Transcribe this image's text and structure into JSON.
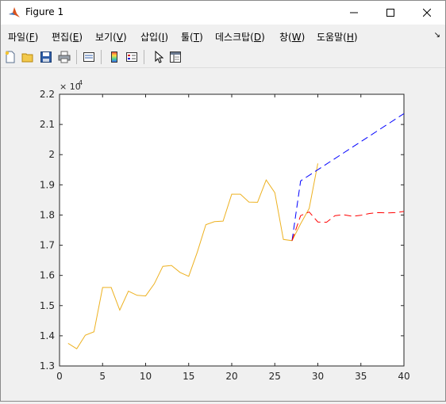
{
  "window": {
    "title": "Figure 1"
  },
  "window_controls": {
    "minimize": "—",
    "maximize": "☐",
    "close": "✕"
  },
  "menu": {
    "items": [
      {
        "text": "파일(",
        "acc": "F",
        "end": ")"
      },
      {
        "text": "편집(",
        "acc": "E",
        "end": ")"
      },
      {
        "text": "보기(",
        "acc": "V",
        "end": ")"
      },
      {
        "text": "삽입(",
        "acc": "I",
        "end": ")"
      },
      {
        "text": "툴(",
        "acc": "T",
        "end": ")"
      },
      {
        "text": "데스크탑(",
        "acc": "D",
        "end": ")"
      },
      {
        "text": "창(",
        "acc": "W",
        "end": ")"
      },
      {
        "text": "도움말(",
        "acc": "H",
        "end": ")"
      }
    ],
    "dock_arrow": "↘"
  },
  "toolbar": {
    "icons": [
      "new-figure-icon",
      "open-file-icon",
      "save-icon",
      "print-icon",
      "link-plot-icon",
      "insert-colorbar-icon",
      "insert-legend-icon",
      "select-pointer-icon",
      "property-inspector-icon"
    ]
  },
  "chart_data": {
    "type": "line",
    "title": "",
    "xlabel": "",
    "ylabel": "",
    "xlim": [
      0,
      40
    ],
    "ylim": [
      13000,
      22000
    ],
    "xticks": [
      "0",
      "5",
      "10",
      "15",
      "20",
      "25",
      "30",
      "35",
      "40"
    ],
    "yticks": [
      "1.3",
      "1.4",
      "1.5",
      "1.6",
      "1.7",
      "1.8",
      "1.9",
      "2",
      "2.1",
      "2.2"
    ],
    "y_exponent_base": "× 10",
    "y_exponent_power": "4",
    "grid": false,
    "legend": "none",
    "colors": {
      "actual": "#EDB120",
      "forecast_high": "#0000FF",
      "forecast_flat": "#FF0000",
      "axes": "#262626"
    },
    "series": [
      {
        "style": "solid",
        "x": [
          1,
          2,
          3,
          4,
          5,
          6,
          7,
          8,
          9,
          10,
          11,
          12,
          13,
          14,
          15,
          16,
          17,
          18,
          19,
          20,
          21,
          22,
          23,
          24,
          25,
          26,
          27,
          28,
          29,
          30
        ],
        "values": [
          13750,
          13570,
          14020,
          14130,
          15600,
          15600,
          14850,
          15480,
          15340,
          15320,
          15720,
          16300,
          16330,
          16100,
          15970,
          16770,
          17680,
          17780,
          17800,
          18690,
          18690,
          18430,
          18420,
          19160,
          18740,
          17190,
          17150,
          17710,
          18220,
          19710
        ]
      },
      {
        "style": "dashed",
        "x": [
          27,
          28,
          40
        ],
        "values": [
          17150,
          19130,
          21360
        ]
      },
      {
        "style": "dashed",
        "x": [
          27,
          28,
          29,
          30,
          31,
          32,
          33,
          34,
          35,
          36,
          37,
          38,
          39,
          40
        ],
        "values": [
          17150,
          17980,
          18100,
          17770,
          17760,
          17980,
          18010,
          17960,
          17990,
          18050,
          18080,
          18070,
          18080,
          18120
        ]
      }
    ]
  }
}
